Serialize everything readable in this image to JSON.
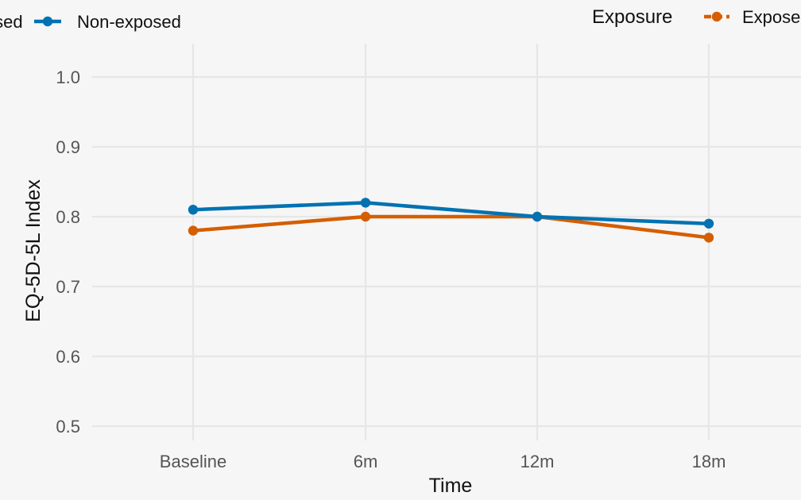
{
  "chart_data": {
    "type": "line",
    "categories": [
      "Baseline",
      "6m",
      "12m",
      "18m"
    ],
    "series": [
      {
        "name": "Non-exposed",
        "color": "#0072b2",
        "values": [
          0.81,
          0.82,
          0.8,
          0.79
        ]
      },
      {
        "name": "Exposed",
        "color": "#d55e00",
        "values": [
          0.78,
          0.8,
          0.8,
          0.77
        ]
      }
    ],
    "xlabel": "Time",
    "ylabel": "EQ-5D-5L Index",
    "ylim": [
      0.5,
      1.0
    ],
    "yticks": [
      "0.5",
      "0.6",
      "0.7",
      "0.8",
      "0.9",
      "1.0"
    ],
    "legend": {
      "title": "Exposure",
      "placement": "top",
      "items": [
        "Exposed",
        "Non-exposed"
      ]
    },
    "grid": true
  }
}
